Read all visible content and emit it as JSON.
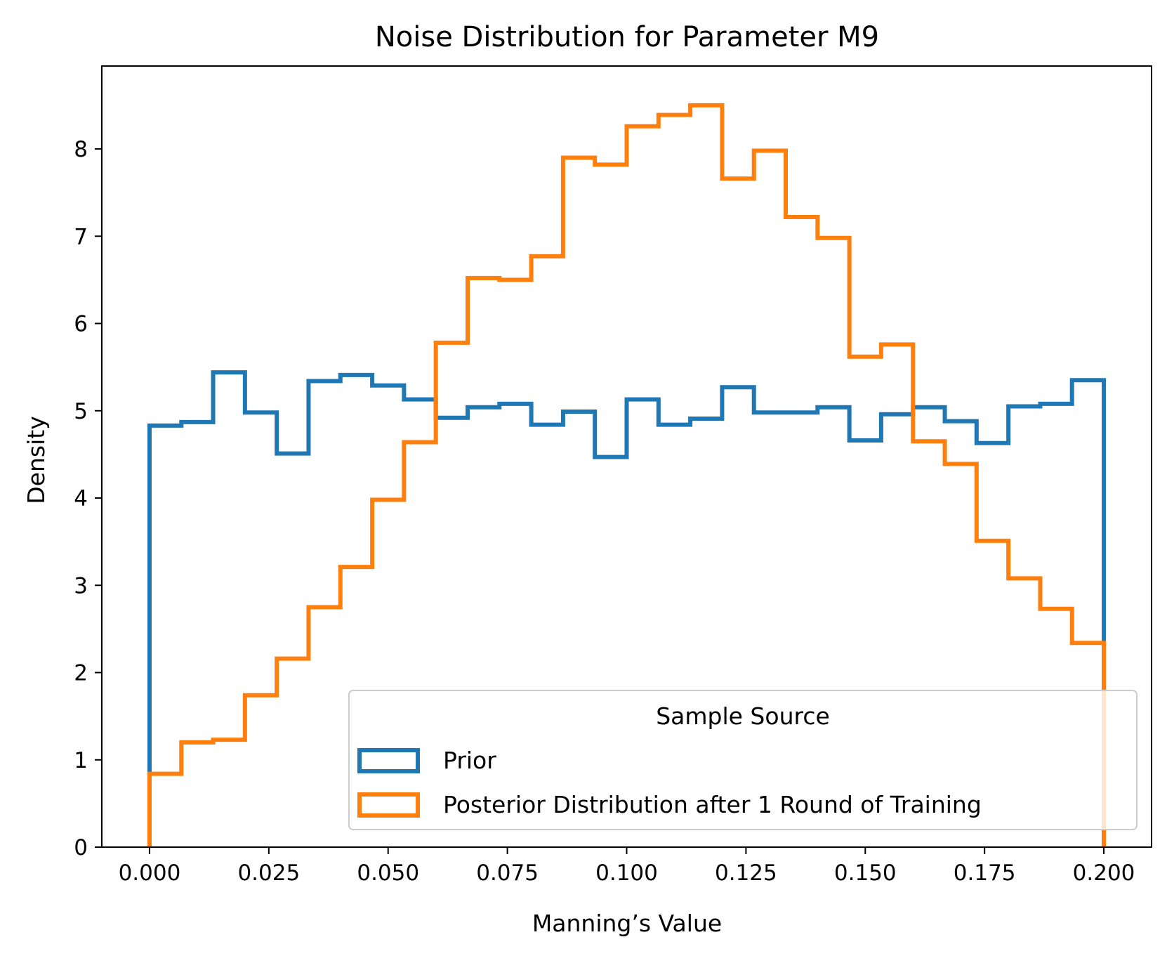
{
  "chart_data": {
    "type": "histogram-step",
    "title": "Noise Distribution for Parameter M9",
    "xlabel": "Manning’s Value",
    "ylabel": "Density",
    "xlim": [
      -0.01,
      0.21
    ],
    "ylim": [
      0,
      8.95
    ],
    "xticks": [
      0.0,
      0.025,
      0.05,
      0.075,
      0.1,
      0.125,
      0.15,
      0.175,
      0.2
    ],
    "xtick_labels": [
      "0.000",
      "0.025",
      "0.050",
      "0.075",
      "0.100",
      "0.125",
      "0.150",
      "0.175",
      "0.200"
    ],
    "yticks": [
      0,
      1,
      2,
      3,
      4,
      5,
      6,
      7,
      8
    ],
    "ytick_labels": [
      "0",
      "1",
      "2",
      "3",
      "4",
      "5",
      "6",
      "7",
      "8"
    ],
    "bin_edges": [
      0.0,
      0.00667,
      0.01333,
      0.02,
      0.02667,
      0.03333,
      0.04,
      0.04667,
      0.05333,
      0.06,
      0.06667,
      0.07333,
      0.08,
      0.08667,
      0.09333,
      0.1,
      0.10667,
      0.11333,
      0.12,
      0.12667,
      0.13333,
      0.14,
      0.14667,
      0.15333,
      0.16,
      0.16667,
      0.17333,
      0.18,
      0.18667,
      0.19333,
      0.2
    ],
    "grid": false,
    "legend": {
      "title": "Sample Source",
      "placement": "lower-right"
    },
    "series": [
      {
        "name": "Prior",
        "color": "#1f77b4",
        "values": [
          4.83,
          4.87,
          5.44,
          4.98,
          4.51,
          5.34,
          5.41,
          5.29,
          5.13,
          4.92,
          5.04,
          5.08,
          4.84,
          4.99,
          4.47,
          5.13,
          4.84,
          4.91,
          5.27,
          4.98,
          4.98,
          5.04,
          4.66,
          4.96,
          5.04,
          4.88,
          4.63,
          5.05,
          5.08,
          5.35
        ]
      },
      {
        "name": "Posterior Distribution after 1 Round of Training",
        "color": "#ff7f0e",
        "values": [
          0.84,
          1.2,
          1.23,
          1.74,
          2.16,
          2.75,
          3.21,
          3.98,
          4.64,
          5.78,
          6.52,
          6.5,
          6.77,
          7.9,
          7.82,
          8.26,
          8.39,
          8.5,
          7.66,
          7.98,
          7.22,
          6.98,
          5.62,
          5.76,
          4.65,
          4.39,
          3.51,
          3.08,
          2.73,
          2.34
        ]
      }
    ]
  }
}
